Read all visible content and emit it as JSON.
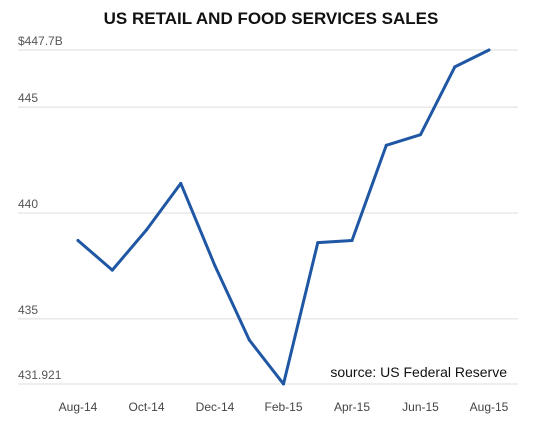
{
  "chart_data": {
    "type": "line",
    "title": "US RETAIL AND FOOD SERVICES SALES",
    "xlabel": "",
    "ylabel": "",
    "source": "source: US Federal Reserve",
    "x": [
      "Aug-14",
      "Sep-14",
      "Oct-14",
      "Nov-14",
      "Dec-14",
      "Jan-15",
      "Feb-15",
      "Mar-15",
      "Apr-15",
      "May-15",
      "Jun-15",
      "Jul-15",
      "Aug-15"
    ],
    "x_tick_labels": [
      "Aug-14",
      "Oct-14",
      "Dec-14",
      "Feb-15",
      "Apr-15",
      "Jun-15",
      "Aug-15"
    ],
    "y_ticks": [
      {
        "value": 431.921,
        "label": "431.921"
      },
      {
        "value": 435,
        "label": "435"
      },
      {
        "value": 440,
        "label": "440"
      },
      {
        "value": 445,
        "label": "445"
      },
      {
        "value": 447.7,
        "label": "$447.7B"
      }
    ],
    "ylim": [
      431.921,
      447.7
    ],
    "grid": true,
    "series": [
      {
        "values": [
          438.7,
          437.3,
          439.2,
          441.4,
          437.5,
          434.0,
          431.921,
          438.6,
          438.7,
          443.2,
          443.7,
          446.9,
          447.7
        ],
        "color": "#1f57a4"
      }
    ]
  }
}
